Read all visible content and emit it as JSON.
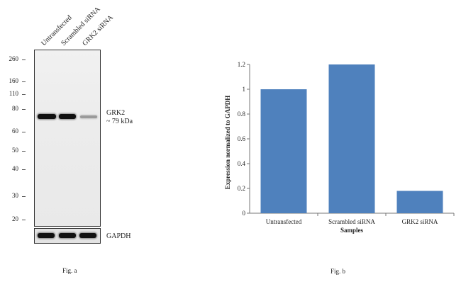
{
  "figure_a": {
    "lanes": [
      "Untransfected",
      "Scrambled siRNA",
      "GRK2 siRNA"
    ],
    "mw_markers": [
      "260",
      "160",
      "110",
      "80",
      "60",
      "50",
      "40",
      "30",
      "20"
    ],
    "target_label": "GRK2",
    "target_size": "~ 79 kDa",
    "loading_label": "GAPDH",
    "caption": "Fig. a"
  },
  "figure_b": {
    "caption": "Fig. b"
  },
  "chart_data": {
    "type": "bar",
    "categories": [
      "Untransfected",
      "Scrambled siRNA",
      "GRK2 siRNA"
    ],
    "values": [
      1.0,
      1.2,
      0.18
    ],
    "title": "",
    "xlabel": "Samples",
    "ylabel": "Expression  normalized to GAPDH",
    "ylim": [
      0,
      1.2
    ],
    "yticks": [
      "0",
      "0.2",
      "0.4",
      "0.6",
      "0.8",
      "1",
      "1.2"
    ],
    "bar_color": "#4f81bd",
    "grid": false
  }
}
